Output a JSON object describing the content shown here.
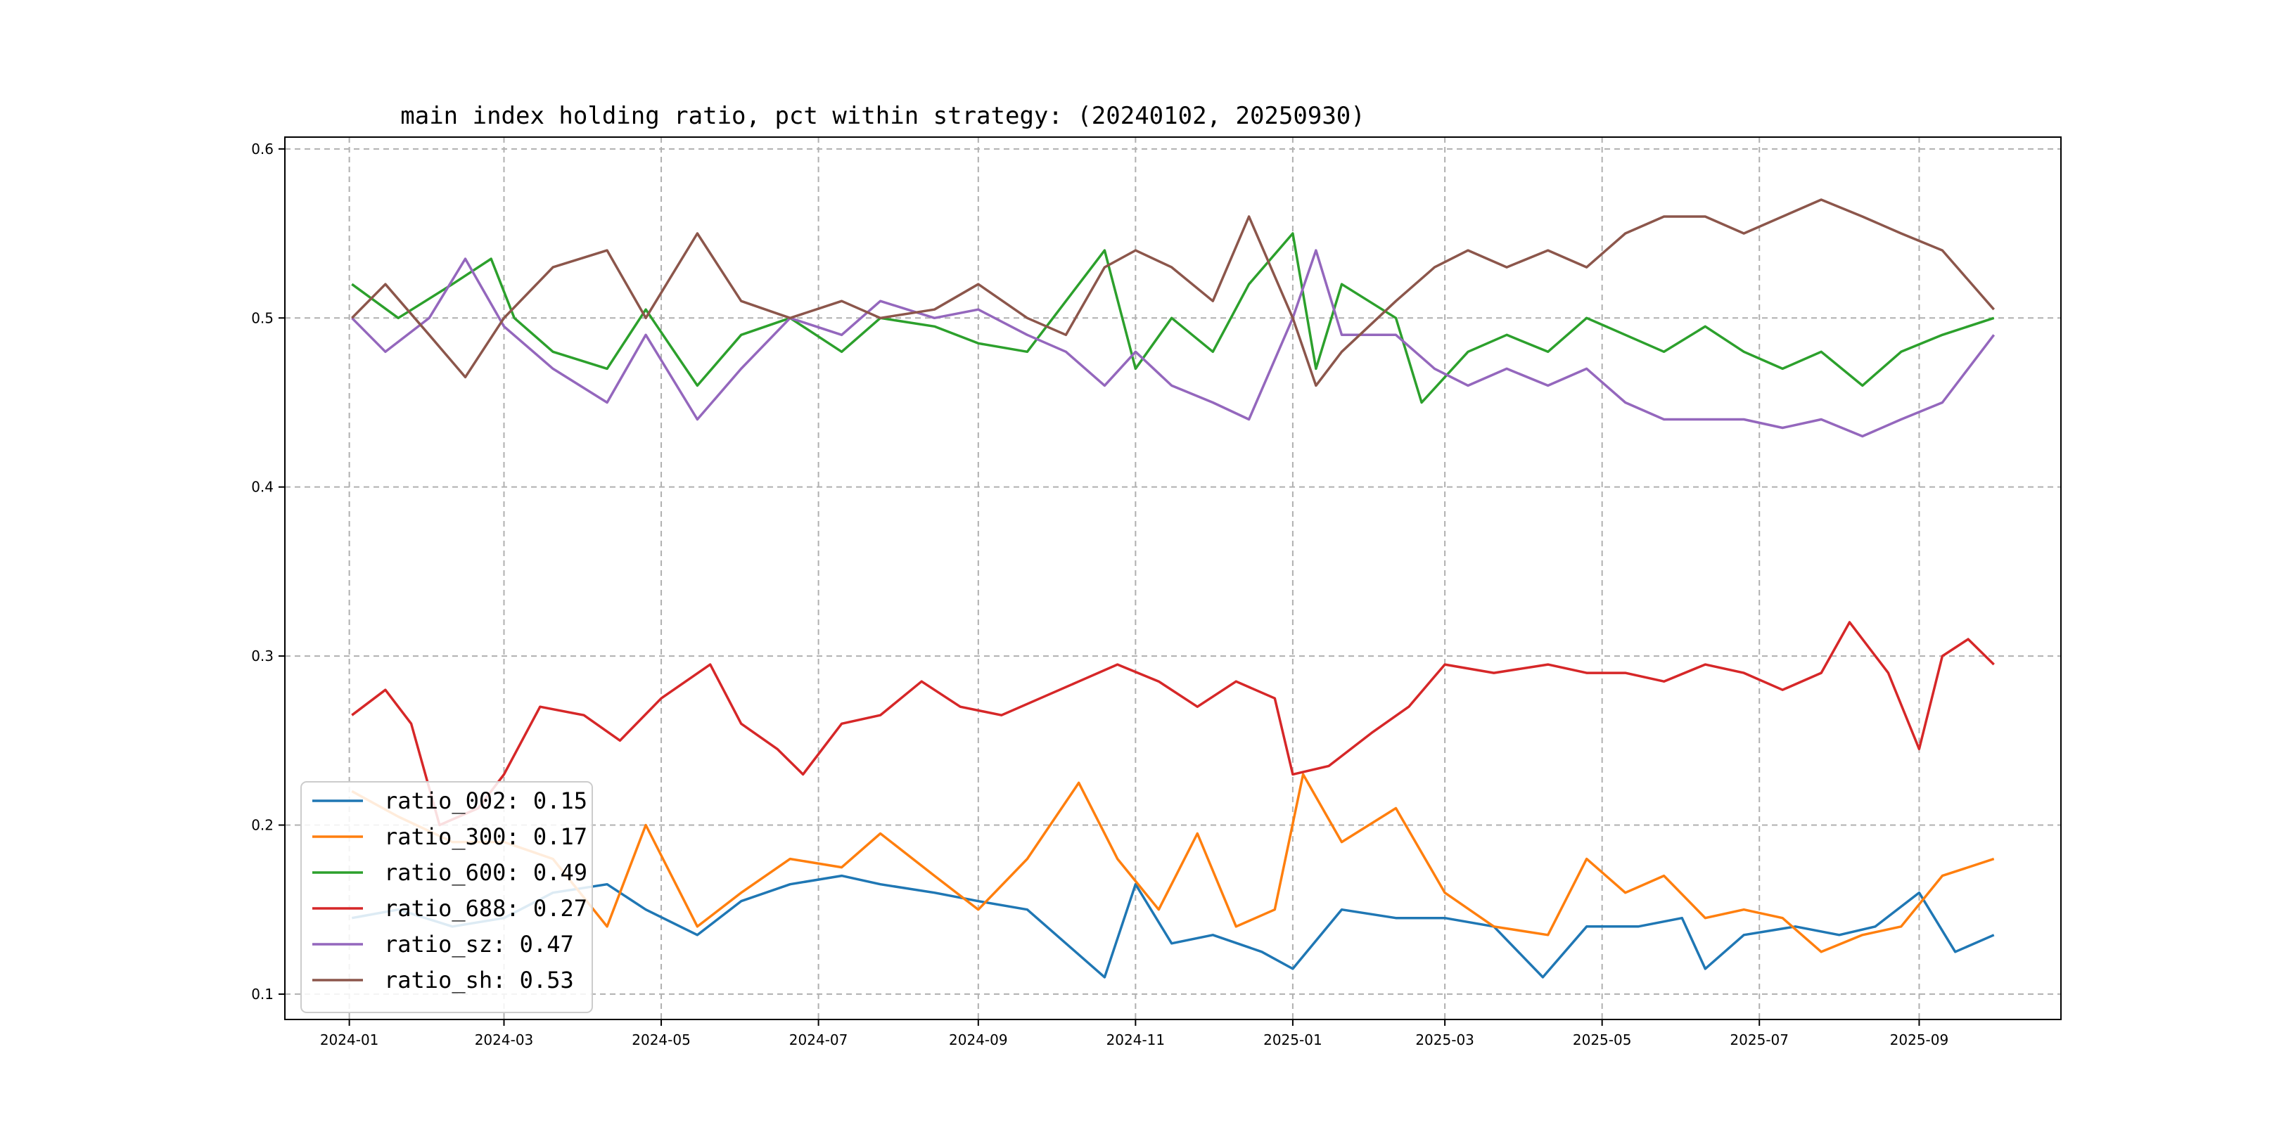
{
  "chart_data": {
    "type": "line",
    "title": "main index holding ratio, pct within strategy: (20240102, 20250930)",
    "xlabel": "",
    "ylabel": "",
    "x_start": "2024-01-02",
    "x_end": "2025-09-30",
    "xlim": [
      "2023-12-07",
      "2025-10-26"
    ],
    "ylim": [
      0.085,
      0.607
    ],
    "x_ticks": [
      {
        "date": "2024-01-01",
        "label": "2024-01"
      },
      {
        "date": "2024-03-01",
        "label": "2024-03"
      },
      {
        "date": "2024-05-01",
        "label": "2024-05"
      },
      {
        "date": "2024-07-01",
        "label": "2024-07"
      },
      {
        "date": "2024-09-01",
        "label": "2024-09"
      },
      {
        "date": "2024-11-01",
        "label": "2024-11"
      },
      {
        "date": "2025-01-01",
        "label": "2025-01"
      },
      {
        "date": "2025-03-01",
        "label": "2025-03"
      },
      {
        "date": "2025-05-01",
        "label": "2025-05"
      },
      {
        "date": "2025-07-01",
        "label": "2025-07"
      },
      {
        "date": "2025-09-01",
        "label": "2025-09"
      }
    ],
    "y_ticks": [
      0.1,
      0.2,
      0.3,
      0.4,
      0.5,
      0.6
    ],
    "y_tick_labels": [
      "0.1",
      "0.2",
      "0.3",
      "0.4",
      "0.5",
      "0.6"
    ],
    "grid": true,
    "legend_position": "bottom-left",
    "series": [
      {
        "name": "ratio_002",
        "legend_label": "ratio_002: 0.15",
        "mean": 0.15,
        "color": "#1f77b4",
        "points": [
          [
            "2024-01-02",
            0.145
          ],
          [
            "2024-01-20",
            0.15
          ],
          [
            "2024-02-10",
            0.14
          ],
          [
            "2024-03-01",
            0.145
          ],
          [
            "2024-03-20",
            0.16
          ],
          [
            "2024-04-10",
            0.165
          ],
          [
            "2024-04-25",
            0.15
          ],
          [
            "2024-05-15",
            0.135
          ],
          [
            "2024-06-01",
            0.155
          ],
          [
            "2024-06-20",
            0.165
          ],
          [
            "2024-07-10",
            0.17
          ],
          [
            "2024-07-25",
            0.165
          ],
          [
            "2024-08-15",
            0.16
          ],
          [
            "2024-09-01",
            0.155
          ],
          [
            "2024-09-20",
            0.15
          ],
          [
            "2024-10-05",
            0.13
          ],
          [
            "2024-10-20",
            0.11
          ],
          [
            "2024-11-01",
            0.165
          ],
          [
            "2024-11-15",
            0.13
          ],
          [
            "2024-12-01",
            0.135
          ],
          [
            "2024-12-20",
            0.125
          ],
          [
            "2025-01-01",
            0.115
          ],
          [
            "2025-01-20",
            0.15
          ],
          [
            "2025-02-10",
            0.145
          ],
          [
            "2025-03-01",
            0.145
          ],
          [
            "2025-03-20",
            0.14
          ],
          [
            "2025-04-08",
            0.11
          ],
          [
            "2025-04-25",
            0.14
          ],
          [
            "2025-05-15",
            0.14
          ],
          [
            "2025-06-01",
            0.145
          ],
          [
            "2025-06-10",
            0.115
          ],
          [
            "2025-06-25",
            0.135
          ],
          [
            "2025-07-15",
            0.14
          ],
          [
            "2025-08-01",
            0.135
          ],
          [
            "2025-08-15",
            0.14
          ],
          [
            "2025-09-01",
            0.16
          ],
          [
            "2025-09-15",
            0.125
          ],
          [
            "2025-09-30",
            0.135
          ]
        ]
      },
      {
        "name": "ratio_300",
        "legend_label": "ratio_300: 0.17",
        "mean": 0.17,
        "color": "#ff7f0e",
        "points": [
          [
            "2024-01-02",
            0.22
          ],
          [
            "2024-01-20",
            0.205
          ],
          [
            "2024-02-10",
            0.19
          ],
          [
            "2024-03-01",
            0.19
          ],
          [
            "2024-03-20",
            0.18
          ],
          [
            "2024-04-10",
            0.14
          ],
          [
            "2024-04-25",
            0.2
          ],
          [
            "2024-05-15",
            0.14
          ],
          [
            "2024-06-01",
            0.16
          ],
          [
            "2024-06-20",
            0.18
          ],
          [
            "2024-07-10",
            0.175
          ],
          [
            "2024-07-25",
            0.195
          ],
          [
            "2024-08-15",
            0.17
          ],
          [
            "2024-09-01",
            0.15
          ],
          [
            "2024-09-20",
            0.18
          ],
          [
            "2024-10-10",
            0.225
          ],
          [
            "2024-10-25",
            0.18
          ],
          [
            "2024-11-10",
            0.15
          ],
          [
            "2024-11-25",
            0.195
          ],
          [
            "2024-12-10",
            0.14
          ],
          [
            "2024-12-25",
            0.15
          ],
          [
            "2025-01-05",
            0.23
          ],
          [
            "2025-01-20",
            0.19
          ],
          [
            "2025-02-10",
            0.21
          ],
          [
            "2025-03-01",
            0.16
          ],
          [
            "2025-03-20",
            0.14
          ],
          [
            "2025-04-10",
            0.135
          ],
          [
            "2025-04-25",
            0.18
          ],
          [
            "2025-05-10",
            0.16
          ],
          [
            "2025-05-25",
            0.17
          ],
          [
            "2025-06-10",
            0.145
          ],
          [
            "2025-06-25",
            0.15
          ],
          [
            "2025-07-10",
            0.145
          ],
          [
            "2025-07-25",
            0.125
          ],
          [
            "2025-08-10",
            0.135
          ],
          [
            "2025-08-25",
            0.14
          ],
          [
            "2025-09-10",
            0.17
          ],
          [
            "2025-09-30",
            0.18
          ]
        ]
      },
      {
        "name": "ratio_600",
        "legend_label": "ratio_600: 0.49",
        "mean": 0.49,
        "color": "#2ca02c",
        "points": [
          [
            "2024-01-02",
            0.52
          ],
          [
            "2024-01-20",
            0.5
          ],
          [
            "2024-02-10",
            0.52
          ],
          [
            "2024-02-25",
            0.535
          ],
          [
            "2024-03-05",
            0.5
          ],
          [
            "2024-03-20",
            0.48
          ],
          [
            "2024-04-10",
            0.47
          ],
          [
            "2024-04-25",
            0.505
          ],
          [
            "2024-05-15",
            0.46
          ],
          [
            "2024-06-01",
            0.49
          ],
          [
            "2024-06-20",
            0.5
          ],
          [
            "2024-07-10",
            0.48
          ],
          [
            "2024-07-25",
            0.5
          ],
          [
            "2024-08-15",
            0.495
          ],
          [
            "2024-09-01",
            0.485
          ],
          [
            "2024-09-20",
            0.48
          ],
          [
            "2024-10-05",
            0.51
          ],
          [
            "2024-10-20",
            0.54
          ],
          [
            "2024-11-01",
            0.47
          ],
          [
            "2024-11-15",
            0.5
          ],
          [
            "2024-12-01",
            0.48
          ],
          [
            "2024-12-15",
            0.52
          ],
          [
            "2025-01-01",
            0.55
          ],
          [
            "2025-01-10",
            0.47
          ],
          [
            "2025-01-20",
            0.52
          ],
          [
            "2025-02-10",
            0.5
          ],
          [
            "2025-02-20",
            0.45
          ],
          [
            "2025-03-10",
            0.48
          ],
          [
            "2025-03-25",
            0.49
          ],
          [
            "2025-04-10",
            0.48
          ],
          [
            "2025-04-25",
            0.5
          ],
          [
            "2025-05-10",
            0.49
          ],
          [
            "2025-05-25",
            0.48
          ],
          [
            "2025-06-10",
            0.495
          ],
          [
            "2025-06-25",
            0.48
          ],
          [
            "2025-07-10",
            0.47
          ],
          [
            "2025-07-25",
            0.48
          ],
          [
            "2025-08-10",
            0.46
          ],
          [
            "2025-08-25",
            0.48
          ],
          [
            "2025-09-10",
            0.49
          ],
          [
            "2025-09-30",
            0.5
          ]
        ]
      },
      {
        "name": "ratio_688",
        "legend_label": "ratio_688: 0.27",
        "mean": 0.27,
        "color": "#d62728",
        "points": [
          [
            "2024-01-02",
            0.265
          ],
          [
            "2024-01-15",
            0.28
          ],
          [
            "2024-01-25",
            0.26
          ],
          [
            "2024-02-05",
            0.2
          ],
          [
            "2024-02-20",
            0.21
          ],
          [
            "2024-03-01",
            0.23
          ],
          [
            "2024-03-15",
            0.27
          ],
          [
            "2024-04-01",
            0.265
          ],
          [
            "2024-04-15",
            0.25
          ],
          [
            "2024-05-01",
            0.275
          ],
          [
            "2024-05-20",
            0.295
          ],
          [
            "2024-06-01",
            0.26
          ],
          [
            "2024-06-15",
            0.245
          ],
          [
            "2024-06-25",
            0.23
          ],
          [
            "2024-07-10",
            0.26
          ],
          [
            "2024-07-25",
            0.265
          ],
          [
            "2024-08-10",
            0.285
          ],
          [
            "2024-08-25",
            0.27
          ],
          [
            "2024-09-10",
            0.265
          ],
          [
            "2024-09-25",
            0.275
          ],
          [
            "2024-10-10",
            0.285
          ],
          [
            "2024-10-25",
            0.295
          ],
          [
            "2024-11-10",
            0.285
          ],
          [
            "2024-11-25",
            0.27
          ],
          [
            "2024-12-10",
            0.285
          ],
          [
            "2024-12-25",
            0.275
          ],
          [
            "2025-01-01",
            0.23
          ],
          [
            "2025-01-15",
            0.235
          ],
          [
            "2025-02-01",
            0.255
          ],
          [
            "2025-02-15",
            0.27
          ],
          [
            "2025-03-01",
            0.295
          ],
          [
            "2025-03-20",
            0.29
          ],
          [
            "2025-04-10",
            0.295
          ],
          [
            "2025-04-25",
            0.29
          ],
          [
            "2025-05-10",
            0.29
          ],
          [
            "2025-05-25",
            0.285
          ],
          [
            "2025-06-10",
            0.295
          ],
          [
            "2025-06-25",
            0.29
          ],
          [
            "2025-07-10",
            0.28
          ],
          [
            "2025-07-25",
            0.29
          ],
          [
            "2025-08-05",
            0.32
          ],
          [
            "2025-08-20",
            0.29
          ],
          [
            "2025-09-01",
            0.245
          ],
          [
            "2025-09-10",
            0.3
          ],
          [
            "2025-09-20",
            0.31
          ],
          [
            "2025-09-30",
            0.295
          ]
        ]
      },
      {
        "name": "ratio_sz",
        "legend_label": "ratio_sz: 0.47",
        "mean": 0.47,
        "color": "#9467bd",
        "points": [
          [
            "2024-01-02",
            0.5
          ],
          [
            "2024-01-15",
            0.48
          ],
          [
            "2024-02-01",
            0.5
          ],
          [
            "2024-02-15",
            0.535
          ],
          [
            "2024-03-01",
            0.495
          ],
          [
            "2024-03-20",
            0.47
          ],
          [
            "2024-04-10",
            0.45
          ],
          [
            "2024-04-25",
            0.49
          ],
          [
            "2024-05-15",
            0.44
          ],
          [
            "2024-06-01",
            0.47
          ],
          [
            "2024-06-20",
            0.5
          ],
          [
            "2024-07-10",
            0.49
          ],
          [
            "2024-07-25",
            0.51
          ],
          [
            "2024-08-15",
            0.5
          ],
          [
            "2024-09-01",
            0.505
          ],
          [
            "2024-09-20",
            0.49
          ],
          [
            "2024-10-05",
            0.48
          ],
          [
            "2024-10-20",
            0.46
          ],
          [
            "2024-11-01",
            0.48
          ],
          [
            "2024-11-15",
            0.46
          ],
          [
            "2024-12-01",
            0.45
          ],
          [
            "2024-12-15",
            0.44
          ],
          [
            "2025-01-01",
            0.5
          ],
          [
            "2025-01-10",
            0.54
          ],
          [
            "2025-01-20",
            0.49
          ],
          [
            "2025-02-10",
            0.49
          ],
          [
            "2025-02-25",
            0.47
          ],
          [
            "2025-03-10",
            0.46
          ],
          [
            "2025-03-25",
            0.47
          ],
          [
            "2025-04-10",
            0.46
          ],
          [
            "2025-04-25",
            0.47
          ],
          [
            "2025-05-10",
            0.45
          ],
          [
            "2025-05-25",
            0.44
          ],
          [
            "2025-06-10",
            0.44
          ],
          [
            "2025-06-25",
            0.44
          ],
          [
            "2025-07-10",
            0.435
          ],
          [
            "2025-07-25",
            0.44
          ],
          [
            "2025-08-10",
            0.43
          ],
          [
            "2025-08-25",
            0.44
          ],
          [
            "2025-09-10",
            0.45
          ],
          [
            "2025-09-30",
            0.49
          ]
        ]
      },
      {
        "name": "ratio_sh",
        "legend_label": "ratio_sh: 0.53",
        "mean": 0.53,
        "color": "#8c564b",
        "points": [
          [
            "2024-01-02",
            0.5
          ],
          [
            "2024-01-15",
            0.52
          ],
          [
            "2024-02-01",
            0.49
          ],
          [
            "2024-02-15",
            0.465
          ],
          [
            "2024-03-01",
            0.5
          ],
          [
            "2024-03-20",
            0.53
          ],
          [
            "2024-04-10",
            0.54
          ],
          [
            "2024-04-25",
            0.5
          ],
          [
            "2024-05-15",
            0.55
          ],
          [
            "2024-06-01",
            0.51
          ],
          [
            "2024-06-20",
            0.5
          ],
          [
            "2024-07-10",
            0.51
          ],
          [
            "2024-07-25",
            0.5
          ],
          [
            "2024-08-15",
            0.505
          ],
          [
            "2024-09-01",
            0.52
          ],
          [
            "2024-09-20",
            0.5
          ],
          [
            "2024-10-05",
            0.49
          ],
          [
            "2024-10-20",
            0.53
          ],
          [
            "2024-11-01",
            0.54
          ],
          [
            "2024-11-15",
            0.53
          ],
          [
            "2024-12-01",
            0.51
          ],
          [
            "2024-12-15",
            0.56
          ],
          [
            "2025-01-01",
            0.5
          ],
          [
            "2025-01-10",
            0.46
          ],
          [
            "2025-01-20",
            0.48
          ],
          [
            "2025-02-10",
            0.51
          ],
          [
            "2025-02-25",
            0.53
          ],
          [
            "2025-03-10",
            0.54
          ],
          [
            "2025-03-25",
            0.53
          ],
          [
            "2025-04-10",
            0.54
          ],
          [
            "2025-04-25",
            0.53
          ],
          [
            "2025-05-10",
            0.55
          ],
          [
            "2025-05-25",
            0.56
          ],
          [
            "2025-06-10",
            0.56
          ],
          [
            "2025-06-25",
            0.55
          ],
          [
            "2025-07-10",
            0.56
          ],
          [
            "2025-07-25",
            0.57
          ],
          [
            "2025-08-10",
            0.56
          ],
          [
            "2025-08-25",
            0.55
          ],
          [
            "2025-09-10",
            0.54
          ],
          [
            "2025-09-30",
            0.505
          ]
        ]
      }
    ]
  }
}
